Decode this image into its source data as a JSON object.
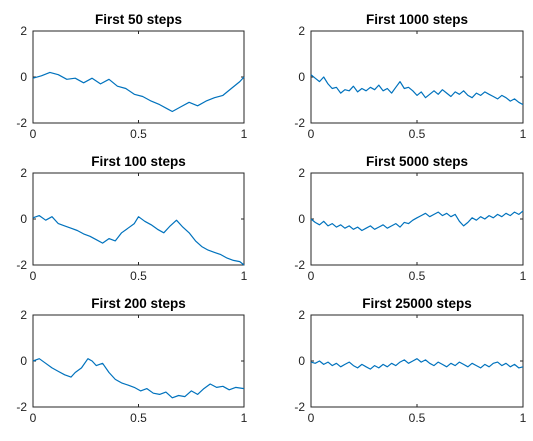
{
  "chart_data": [
    {
      "type": "line",
      "title": "First 50 steps",
      "xlim": [
        0,
        1
      ],
      "ylim": [
        -2,
        2
      ],
      "xticks": [
        0,
        0.5,
        1
      ],
      "yticks": [
        -2,
        0,
        2
      ],
      "xtick_labels": [
        "0",
        "0.5",
        "1"
      ],
      "ytick_labels": [
        "-2",
        "0",
        "2"
      ],
      "line_color": "#0072BD",
      "x": [
        0,
        0.04,
        0.08,
        0.12,
        0.16,
        0.2,
        0.24,
        0.28,
        0.32,
        0.36,
        0.4,
        0.44,
        0.48,
        0.52,
        0.56,
        0.6,
        0.64,
        0.66,
        0.7,
        0.74,
        0.78,
        0.82,
        0.86,
        0.9,
        0.94,
        0.98,
        1.0
      ],
      "y": [
        -0.05,
        0.05,
        0.2,
        0.1,
        -0.1,
        -0.05,
        -0.25,
        -0.05,
        -0.3,
        -0.1,
        -0.4,
        -0.5,
        -0.75,
        -0.85,
        -1.05,
        -1.2,
        -1.4,
        -1.5,
        -1.3,
        -1.1,
        -1.25,
        -1.05,
        -0.9,
        -0.8,
        -0.5,
        -0.2,
        0.0
      ]
    },
    {
      "type": "line",
      "title": "First 1000 steps",
      "xlim": [
        0,
        1
      ],
      "ylim": [
        -2,
        2
      ],
      "xticks": [
        0,
        0.5,
        1
      ],
      "yticks": [
        -2,
        0,
        2
      ],
      "xtick_labels": [
        "0",
        "0.5",
        "1"
      ],
      "ytick_labels": [
        "-2",
        "0",
        "2"
      ],
      "line_color": "#0072BD",
      "x": [
        0,
        0.02,
        0.04,
        0.06,
        0.08,
        0.1,
        0.12,
        0.14,
        0.16,
        0.18,
        0.2,
        0.22,
        0.24,
        0.26,
        0.28,
        0.3,
        0.32,
        0.34,
        0.36,
        0.38,
        0.4,
        0.42,
        0.44,
        0.46,
        0.48,
        0.5,
        0.52,
        0.54,
        0.56,
        0.58,
        0.6,
        0.62,
        0.64,
        0.66,
        0.68,
        0.7,
        0.72,
        0.74,
        0.76,
        0.78,
        0.8,
        0.82,
        0.84,
        0.86,
        0.88,
        0.9,
        0.92,
        0.94,
        0.96,
        0.98,
        1.0
      ],
      "y": [
        0.1,
        -0.05,
        -0.2,
        0.0,
        -0.3,
        -0.5,
        -0.45,
        -0.7,
        -0.55,
        -0.6,
        -0.4,
        -0.65,
        -0.5,
        -0.6,
        -0.45,
        -0.55,
        -0.35,
        -0.6,
        -0.5,
        -0.7,
        -0.45,
        -0.2,
        -0.5,
        -0.45,
        -0.6,
        -0.8,
        -0.65,
        -0.9,
        -0.75,
        -0.6,
        -0.75,
        -0.55,
        -0.7,
        -0.85,
        -0.65,
        -0.75,
        -0.6,
        -0.8,
        -0.9,
        -0.7,
        -0.8,
        -0.65,
        -0.75,
        -0.85,
        -0.95,
        -0.8,
        -0.9,
        -1.05,
        -0.95,
        -1.1,
        -1.2
      ]
    },
    {
      "type": "line",
      "title": "First 100 steps",
      "xlim": [
        0,
        1
      ],
      "ylim": [
        -2,
        2
      ],
      "xticks": [
        0,
        0.5,
        1
      ],
      "yticks": [
        -2,
        0,
        2
      ],
      "xtick_labels": [
        "0",
        "0.5",
        "1"
      ],
      "ytick_labels": [
        "-2",
        "0",
        "2"
      ],
      "line_color": "#0072BD",
      "x": [
        0,
        0.03,
        0.06,
        0.09,
        0.12,
        0.15,
        0.18,
        0.21,
        0.24,
        0.27,
        0.3,
        0.33,
        0.36,
        0.39,
        0.42,
        0.45,
        0.48,
        0.5,
        0.53,
        0.56,
        0.59,
        0.62,
        0.65,
        0.68,
        0.71,
        0.74,
        0.77,
        0.8,
        0.83,
        0.86,
        0.89,
        0.92,
        0.95,
        0.98,
        1.0
      ],
      "y": [
        0.05,
        0.15,
        -0.05,
        0.1,
        -0.2,
        -0.3,
        -0.4,
        -0.5,
        -0.65,
        -0.75,
        -0.9,
        -1.05,
        -0.85,
        -0.95,
        -0.6,
        -0.4,
        -0.2,
        0.1,
        -0.1,
        -0.25,
        -0.45,
        -0.6,
        -0.3,
        -0.05,
        -0.35,
        -0.6,
        -0.95,
        -1.2,
        -1.35,
        -1.45,
        -1.55,
        -1.7,
        -1.8,
        -1.85,
        -2.0
      ]
    },
    {
      "type": "line",
      "title": "First 5000 steps",
      "xlim": [
        0,
        1
      ],
      "ylim": [
        -2,
        2
      ],
      "xticks": [
        0,
        0.5,
        1
      ],
      "yticks": [
        -2,
        0,
        2
      ],
      "xtick_labels": [
        "0",
        "0.5",
        "1"
      ],
      "ytick_labels": [
        "-2",
        "0",
        "2"
      ],
      "line_color": "#0072BD",
      "x": [
        0,
        0.02,
        0.04,
        0.06,
        0.08,
        0.1,
        0.12,
        0.14,
        0.16,
        0.18,
        0.2,
        0.22,
        0.24,
        0.26,
        0.28,
        0.3,
        0.32,
        0.34,
        0.36,
        0.38,
        0.4,
        0.42,
        0.44,
        0.46,
        0.48,
        0.5,
        0.52,
        0.54,
        0.56,
        0.58,
        0.6,
        0.62,
        0.64,
        0.66,
        0.68,
        0.7,
        0.72,
        0.74,
        0.76,
        0.78,
        0.8,
        0.82,
        0.84,
        0.86,
        0.88,
        0.9,
        0.92,
        0.94,
        0.96,
        0.98,
        1.0
      ],
      "y": [
        0.0,
        -0.15,
        -0.25,
        -0.1,
        -0.3,
        -0.2,
        -0.35,
        -0.25,
        -0.4,
        -0.3,
        -0.45,
        -0.35,
        -0.5,
        -0.4,
        -0.3,
        -0.45,
        -0.35,
        -0.25,
        -0.4,
        -0.3,
        -0.2,
        -0.35,
        -0.15,
        -0.2,
        -0.05,
        0.05,
        0.15,
        0.25,
        0.1,
        0.2,
        0.3,
        0.15,
        0.25,
        0.1,
        0.2,
        -0.1,
        -0.3,
        -0.15,
        0.05,
        -0.05,
        0.1,
        0.0,
        0.15,
        0.05,
        0.2,
        0.1,
        0.25,
        0.15,
        0.3,
        0.2,
        0.35
      ]
    },
    {
      "type": "line",
      "title": "First 200 steps",
      "xlim": [
        0,
        1
      ],
      "ylim": [
        -2,
        2
      ],
      "xticks": [
        0,
        0.5,
        1
      ],
      "yticks": [
        -2,
        0,
        2
      ],
      "xtick_labels": [
        "0",
        "0.5",
        "1"
      ],
      "ytick_labels": [
        "-2",
        "0",
        "2"
      ],
      "line_color": "#0072BD",
      "x": [
        0,
        0.03,
        0.06,
        0.09,
        0.12,
        0.15,
        0.18,
        0.2,
        0.23,
        0.26,
        0.28,
        0.3,
        0.33,
        0.36,
        0.39,
        0.42,
        0.45,
        0.48,
        0.51,
        0.54,
        0.57,
        0.6,
        0.63,
        0.66,
        0.69,
        0.72,
        0.75,
        0.78,
        0.81,
        0.84,
        0.87,
        0.9,
        0.93,
        0.96,
        1.0
      ],
      "y": [
        0.0,
        0.1,
        -0.1,
        -0.3,
        -0.45,
        -0.6,
        -0.7,
        -0.5,
        -0.3,
        0.1,
        0.0,
        -0.2,
        -0.1,
        -0.5,
        -0.8,
        -0.95,
        -1.05,
        -1.15,
        -1.3,
        -1.2,
        -1.4,
        -1.45,
        -1.35,
        -1.6,
        -1.5,
        -1.55,
        -1.3,
        -1.45,
        -1.2,
        -1.0,
        -1.15,
        -1.1,
        -1.25,
        -1.15,
        -1.2
      ]
    },
    {
      "type": "line",
      "title": "First 25000 steps",
      "xlim": [
        0,
        1
      ],
      "ylim": [
        -2,
        2
      ],
      "xticks": [
        0,
        0.5,
        1
      ],
      "yticks": [
        -2,
        0,
        2
      ],
      "xtick_labels": [
        "0",
        "0.5",
        "1"
      ],
      "ytick_labels": [
        "-2",
        "0",
        "2"
      ],
      "line_color": "#0072BD",
      "x": [
        0,
        0.02,
        0.04,
        0.06,
        0.08,
        0.1,
        0.12,
        0.14,
        0.16,
        0.18,
        0.2,
        0.22,
        0.24,
        0.26,
        0.28,
        0.3,
        0.32,
        0.34,
        0.36,
        0.38,
        0.4,
        0.42,
        0.44,
        0.46,
        0.48,
        0.5,
        0.52,
        0.54,
        0.56,
        0.58,
        0.6,
        0.62,
        0.64,
        0.66,
        0.68,
        0.7,
        0.72,
        0.74,
        0.76,
        0.78,
        0.8,
        0.82,
        0.84,
        0.86,
        0.88,
        0.9,
        0.92,
        0.94,
        0.96,
        0.98,
        1.0
      ],
      "y": [
        -0.05,
        -0.1,
        0.0,
        -0.15,
        -0.05,
        -0.2,
        -0.1,
        -0.25,
        -0.15,
        -0.05,
        -0.2,
        -0.3,
        -0.15,
        -0.25,
        -0.35,
        -0.2,
        -0.3,
        -0.15,
        -0.25,
        -0.1,
        -0.2,
        -0.05,
        0.05,
        -0.1,
        0.0,
        0.1,
        -0.05,
        0.05,
        -0.1,
        -0.2,
        -0.05,
        -0.15,
        -0.25,
        -0.1,
        -0.2,
        -0.05,
        -0.15,
        -0.25,
        -0.1,
        -0.2,
        -0.3,
        -0.15,
        -0.25,
        -0.1,
        -0.05,
        -0.2,
        -0.1,
        -0.25,
        -0.15,
        -0.3,
        -0.25
      ]
    }
  ]
}
